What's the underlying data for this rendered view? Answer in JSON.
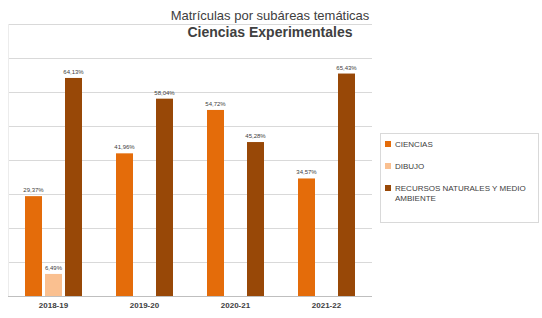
{
  "chart_data": {
    "type": "bar",
    "title": "Matrículas por subáreas temáticas",
    "subtitle": "Ciencias Experimentales",
    "categories": [
      "2018-19",
      "2019-20",
      "2020-21",
      "2021-22"
    ],
    "series": [
      {
        "name": "CIENCIAS",
        "color": "#e46c0a",
        "values": [
          29.37,
          41.96,
          54.72,
          34.57
        ],
        "value_labels": [
          "29,37%",
          "41,96%",
          "54,72%",
          "34,57%"
        ]
      },
      {
        "name": "DIBUJO",
        "color": "#fac090",
        "values": [
          6.49,
          null,
          null,
          null
        ],
        "value_labels": [
          "6,49%",
          null,
          null,
          null
        ]
      },
      {
        "name": "RECURSOS NATURALES Y MEDIO AMBIENTE",
        "color": "#984807",
        "values": [
          64.13,
          58.04,
          45.28,
          65.43
        ],
        "value_labels": [
          "64,13%",
          "58,04%",
          "45,28%",
          "65,43%"
        ]
      }
    ],
    "ylim": [
      0,
      80
    ],
    "yticks": [
      0,
      10,
      20,
      30,
      40,
      50,
      60,
      70,
      80
    ],
    "grid": true,
    "legend": "right",
    "data_labels": true,
    "tick_labels": "x"
  }
}
